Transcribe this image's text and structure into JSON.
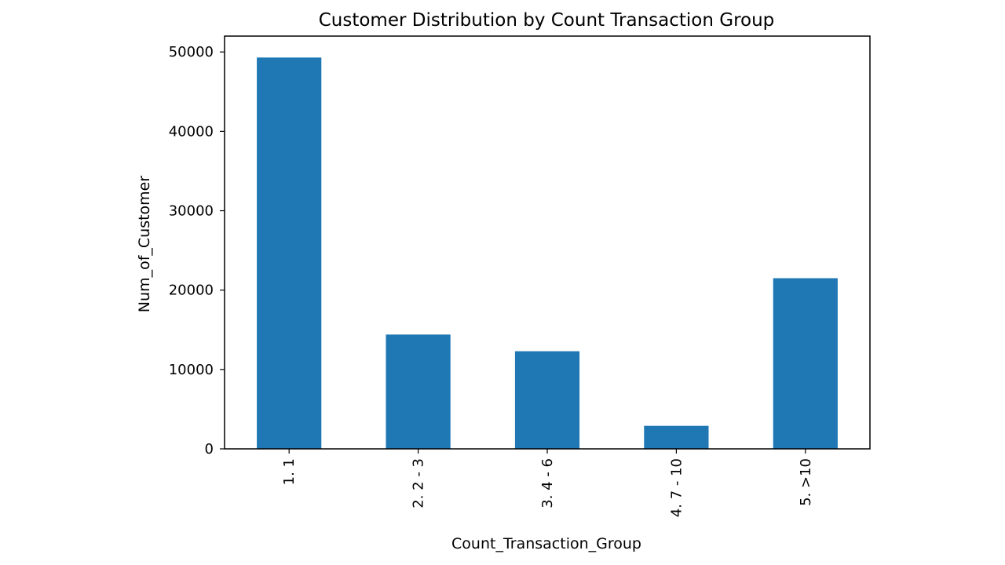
{
  "chart_data": {
    "type": "bar",
    "title": "Customer Distribution by Count Transaction Group",
    "xlabel": "Count_Transaction_Group",
    "ylabel": "Num_of_Customer",
    "categories": [
      "1. 1",
      "2. 2 - 3",
      "3. 4 - 6",
      "4. 7 - 10",
      "5. >10"
    ],
    "values": [
      49300,
      14400,
      12300,
      2900,
      21500
    ],
    "ylim": [
      0,
      52000
    ],
    "yticks": [
      0,
      10000,
      20000,
      30000,
      40000,
      50000
    ],
    "grid": false,
    "legend": "none",
    "bar_color": "#1f77b4"
  }
}
